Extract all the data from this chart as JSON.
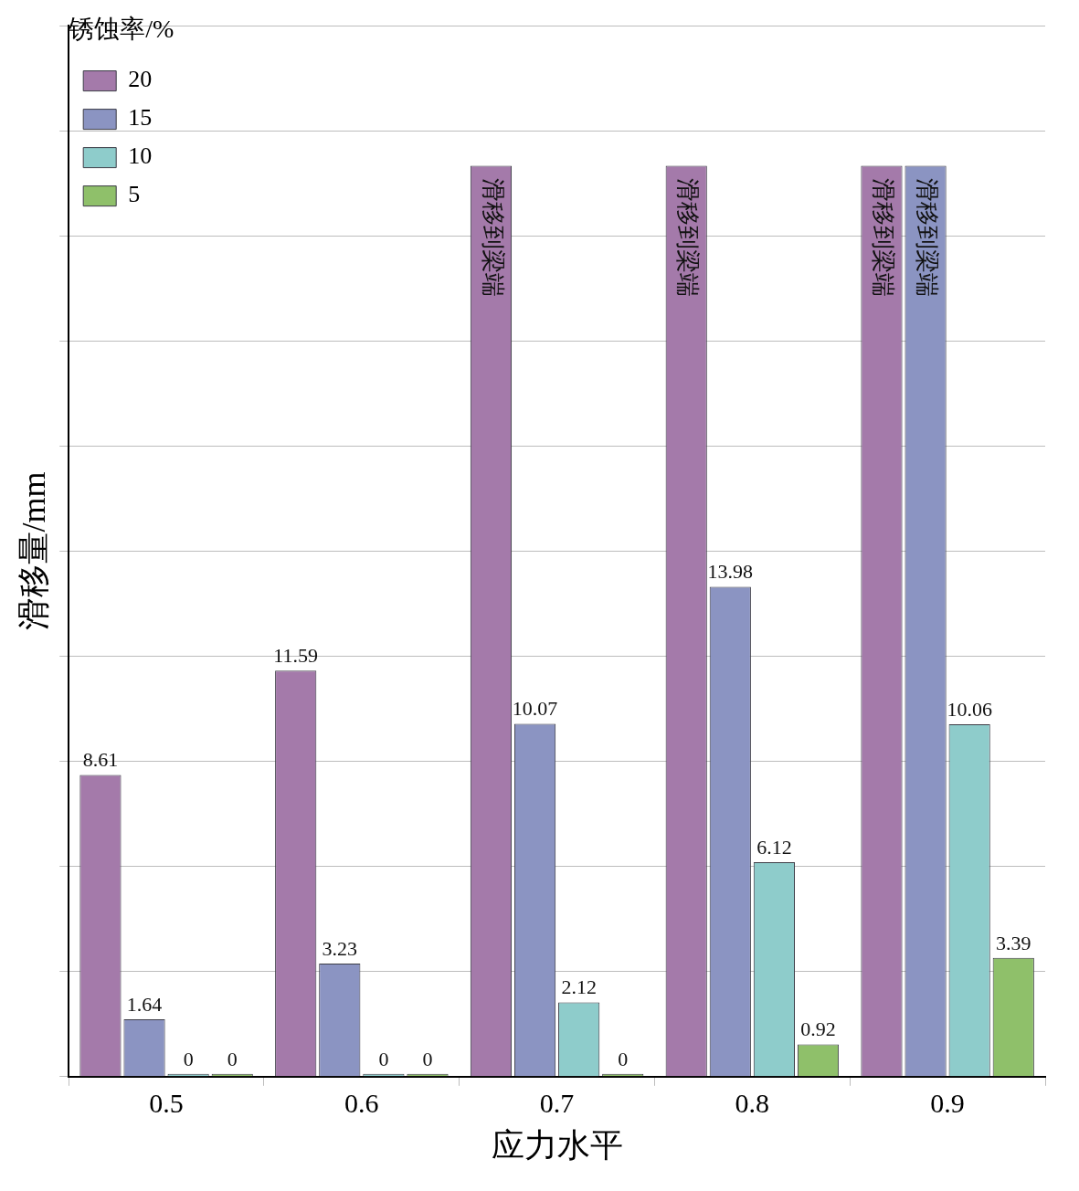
{
  "chart_data": {
    "type": "bar",
    "xlabel": "应力水平",
    "ylabel": "滑移量/mm",
    "legend_title": "锈蚀率/%",
    "categories": [
      "0.5",
      "0.6",
      "0.7",
      "0.8",
      "0.9"
    ],
    "series": [
      {
        "name": "20",
        "color": "#a47aaa",
        "values": [
          8.61,
          11.59,
          26,
          26,
          26
        ],
        "value_labels": [
          "8.61",
          "11.59",
          "滑移到梁端",
          "滑移到梁端",
          "滑移到梁端"
        ]
      },
      {
        "name": "15",
        "color": "#8b94c2",
        "values": [
          1.64,
          3.23,
          10.07,
          13.98,
          26
        ],
        "value_labels": [
          "1.64",
          "3.23",
          "10.07",
          "13.98",
          "滑移到梁端"
        ]
      },
      {
        "name": "10",
        "color": "#8ecccb",
        "values": [
          0,
          0,
          2.12,
          6.12,
          10.06
        ],
        "value_labels": [
          "0",
          "0",
          "2.12",
          "6.12",
          "10.06"
        ]
      },
      {
        "name": "5",
        "color": "#8fc06a",
        "values": [
          0,
          0,
          0,
          0.92,
          3.39
        ],
        "value_labels": [
          "0",
          "0",
          "0",
          "0.92",
          "3.39"
        ]
      }
    ],
    "ylim": [
      0,
      30
    ],
    "yticks": [
      {
        "value": 0,
        "label": null
      },
      {
        "value": 3,
        "label": null
      },
      {
        "value": 6,
        "label": null
      },
      {
        "value": 9,
        "label": null
      },
      {
        "value": 12,
        "label": null
      },
      {
        "value": 15,
        "label": null
      },
      {
        "value": 18,
        "label": null
      },
      {
        "value": 21,
        "label": null
      },
      {
        "value": 24,
        "label": null
      },
      {
        "value": 27,
        "label": null
      },
      {
        "value": 30,
        "label": null
      }
    ],
    "grid": "y",
    "legend": "top left",
    "tick_labels": "x"
  }
}
